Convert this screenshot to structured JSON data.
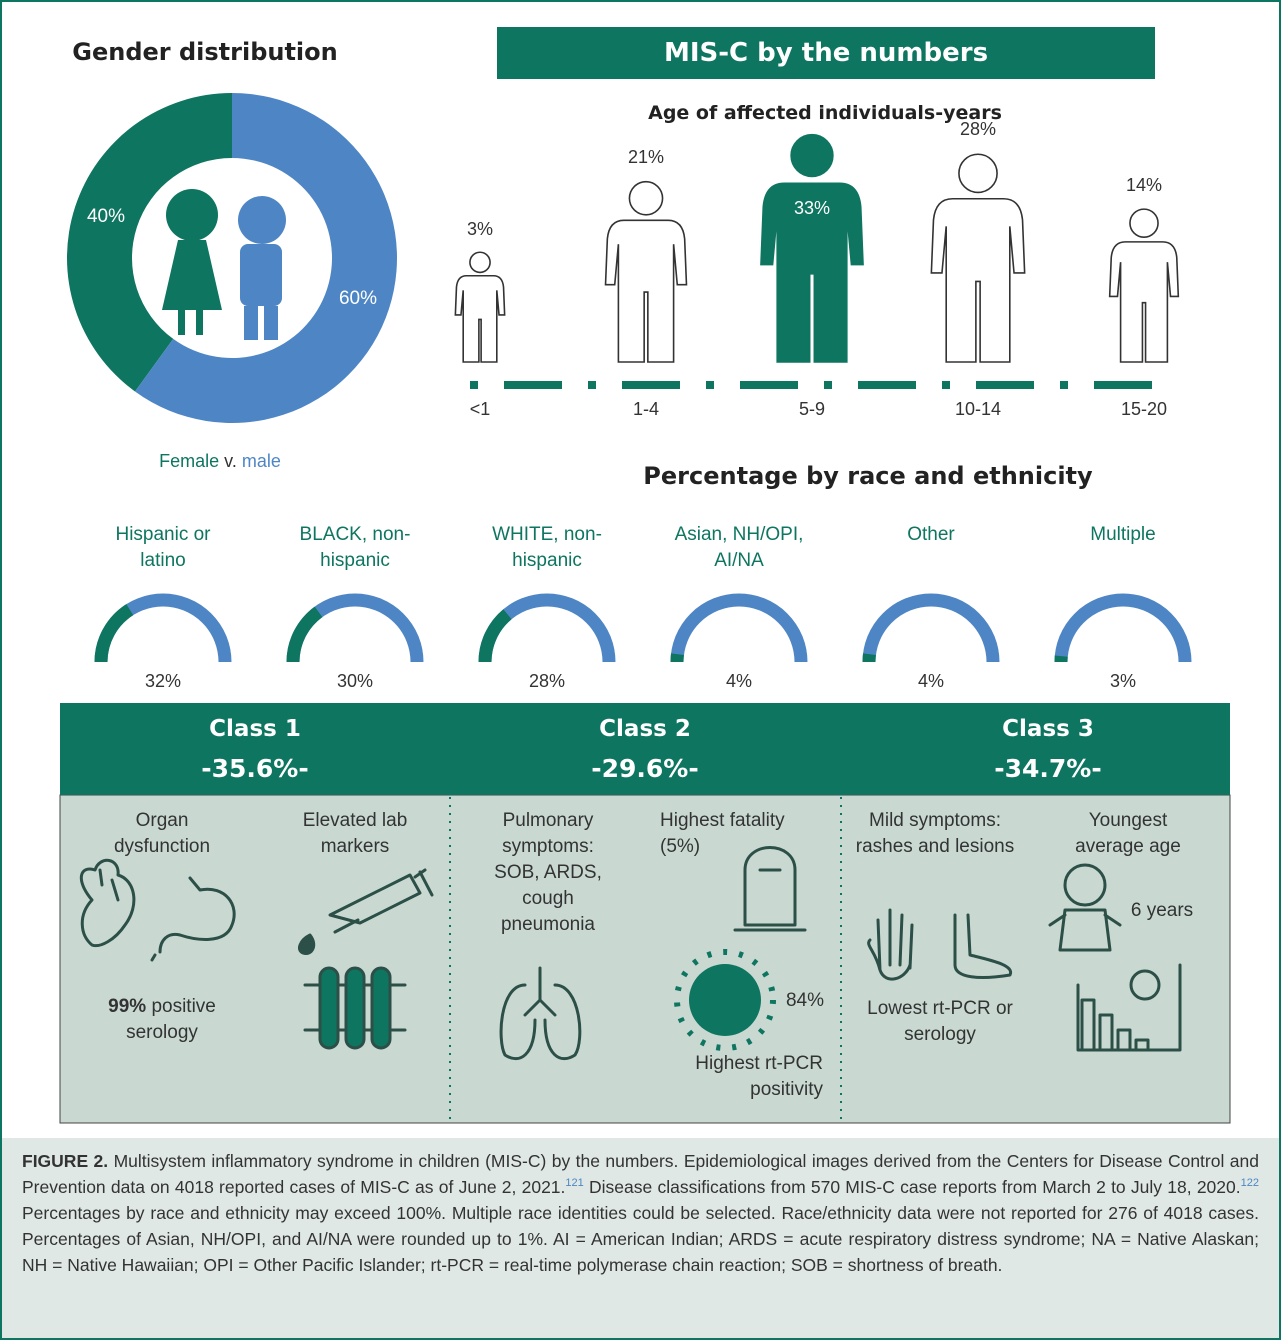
{
  "chart_data": [
    {
      "type": "donut",
      "title": "Gender distribution",
      "categories": [
        "Female",
        "male"
      ],
      "values": [
        40,
        60
      ],
      "value_labels": [
        "40%",
        "60%"
      ],
      "colors": [
        "#0e7560",
        "#4e86c5"
      ],
      "separator": "v."
    },
    {
      "type": "pictogram",
      "title": "Age of affected individuals-years",
      "categories": [
        "<1",
        "1-4",
        "5-9",
        "10-14",
        "15-20"
      ],
      "values": [
        3,
        21,
        33,
        28,
        14
      ],
      "value_labels": [
        "3%",
        "21%",
        "33%",
        "28%",
        "14%"
      ],
      "color": "#0e7560"
    },
    {
      "type": "gauge",
      "title": "Percentage by race and ethnicity",
      "categories": [
        "Hispanic or latino",
        "BLACK, non-hispanic",
        "WHITE, non-hispanic",
        "Asian, NH/OPI, AI/NA",
        "Other",
        "Multiple"
      ],
      "values": [
        32,
        30,
        28,
        4,
        4,
        3
      ],
      "value_labels": [
        "32%",
        "30%",
        "28%",
        "4%",
        "4%",
        "3%"
      ],
      "colors": [
        "#0e7560",
        "#4e86c5"
      ]
    }
  ],
  "header": {
    "title": "MIS-C by the numbers"
  },
  "classes": [
    {
      "name": "Class 1",
      "value": 35.6,
      "value_label": "-35.6%-",
      "notes": [
        "Organ dysfunction",
        "Elevated lab markers",
        "99%",
        "positive serology"
      ]
    },
    {
      "name": "Class 2",
      "value": 29.6,
      "value_label": "-29.6%-",
      "notes": [
        "Pulmonary symptoms: SOB, ARDS, cough pneumonia",
        "Highest fatality (5%)",
        "84%",
        "Highest rt-PCR positivity"
      ]
    },
    {
      "name": "Class 3",
      "value": 34.7,
      "value_label": "-34.7%-",
      "notes": [
        "Mild symptoms: rashes and lesions",
        "Youngest average age",
        "6 years",
        "Lowest rt-PCR or serology"
      ]
    }
  ],
  "caption": {
    "label": "FIGURE 2.",
    "text": [
      "Multisystem inflammatory syndrome in children (MIS-C) by the numbers. Epidemiological images derived from the Centers for Disease Control and Prevention data on 4018 reported cases of MIS-C as of June 2, 2021.",
      "Disease classifications from 570 MIS-C case reports from March 2 to July 18, 2020.",
      "Percentages by race and ethnicity may exceed 100%. Multiple race identities could be selected. Race/ethnicity data were not reported for 276 of 4018 cases. Percentages of Asian, NH/OPI, and AI/NA were rounded up to 1%. AI = American Indian; ARDS = acute respiratory distress syndrome; NA = Native Alaskan; NH = Native Hawaiian; OPI = Other Pacific Islander; rt-PCR = real-time polymerase chain reaction; SOB = shortness of breath."
    ],
    "refs": [
      "121",
      "122"
    ]
  }
}
